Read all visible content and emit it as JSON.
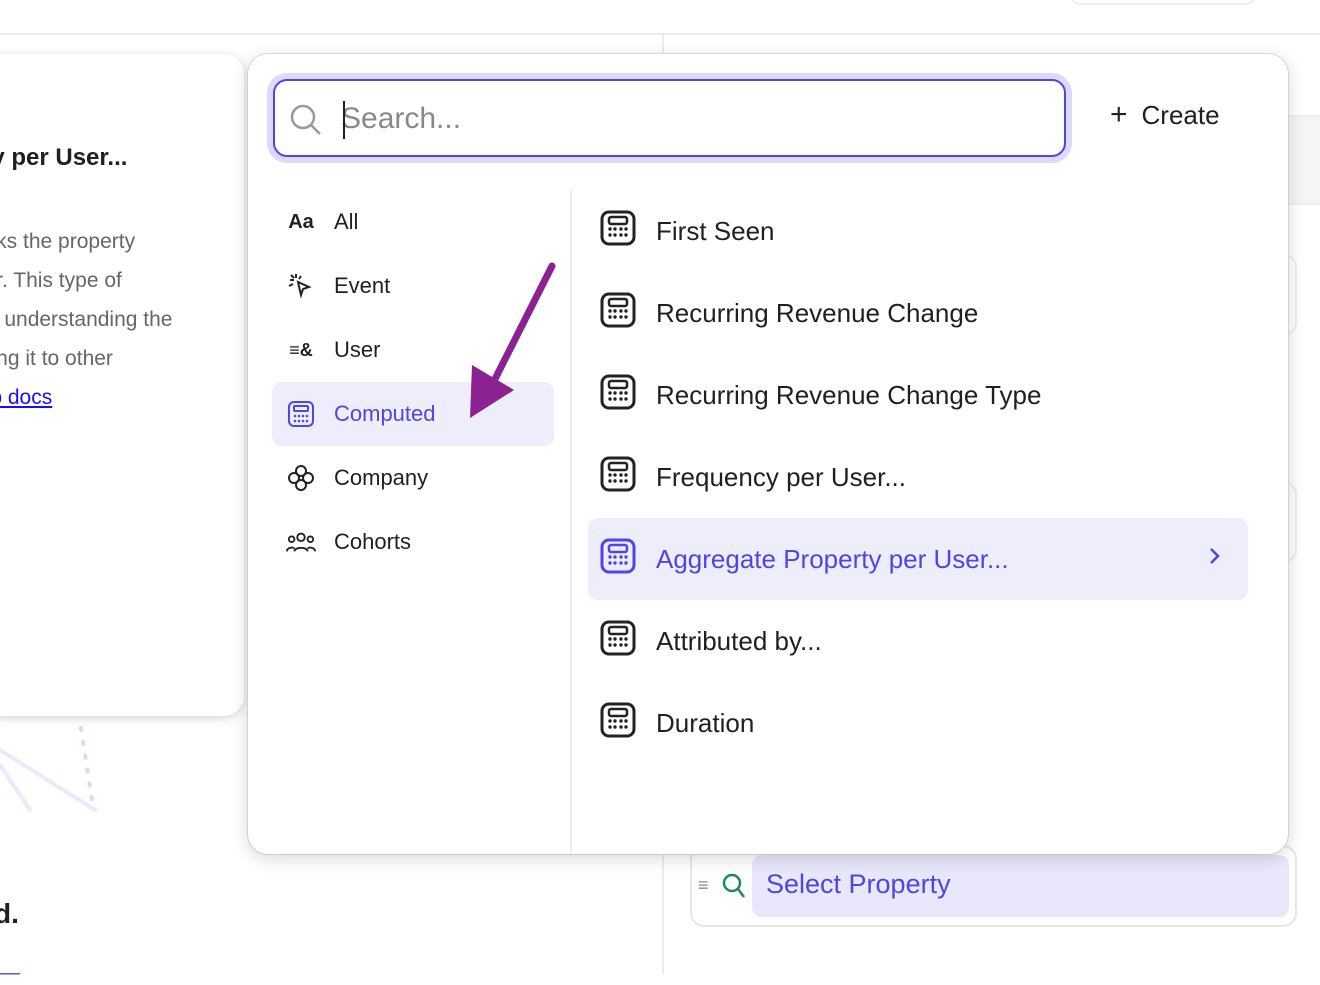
{
  "left_card": {
    "title": "rty per User...",
    "description_lines": [
      "acks the property",
      "ser. This type of",
      "for understanding the",
      "ating it to other"
    ],
    "link": "elp docs"
  },
  "background": {
    "heading_fragment": "d.",
    "select_property": "Select Property"
  },
  "popup": {
    "search": {
      "value": "",
      "placeholder": "Search..."
    },
    "create_label": "Create",
    "categories": [
      {
        "label": "All",
        "icon": "text-aa-icon"
      },
      {
        "label": "Event",
        "icon": "cursor-click-icon"
      },
      {
        "label": "User",
        "icon": "user-icon"
      },
      {
        "label": "Computed",
        "icon": "calculator-icon",
        "active": true
      },
      {
        "label": "Company",
        "icon": "company-icon"
      },
      {
        "label": "Cohorts",
        "icon": "users-group-icon"
      }
    ],
    "items": [
      {
        "label": "First Seen"
      },
      {
        "label": "Recurring Revenue Change"
      },
      {
        "label": "Recurring Revenue Change Type"
      },
      {
        "label": "Frequency per User..."
      },
      {
        "label": "Aggregate Property per User...",
        "active": true
      },
      {
        "label": "Attributed by..."
      },
      {
        "label": "Duration"
      }
    ]
  },
  "colors": {
    "accent": "#4f46e5",
    "highlight": "#eeedfc",
    "annotation_arrow": "#8b2291"
  }
}
